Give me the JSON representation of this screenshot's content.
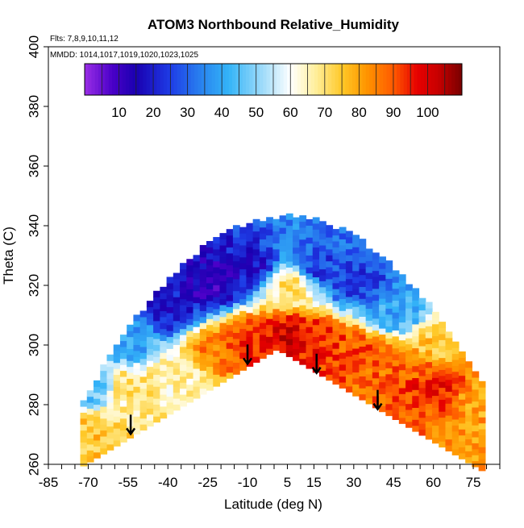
{
  "chart_data": {
    "type": "heatmap",
    "title": "ATOM3 Northbound Relative_Humidity",
    "subtitle_flights": "Flts: 7,8,9,10,11,12",
    "subtitle_dates": "MMDD: 1014,1017,1019,1020,1023,1025",
    "xlabel": "Latitude (deg N)",
    "ylabel": "Theta (C)",
    "xlim": [
      -85,
      85
    ],
    "ylim": [
      260,
      400
    ],
    "x_ticks": [
      -85,
      -70,
      -55,
      -40,
      -25,
      -10,
      5,
      15,
      30,
      45,
      60,
      75
    ],
    "y_ticks": [
      260,
      280,
      300,
      320,
      340,
      360,
      380,
      400
    ],
    "colorbar": {
      "range": [
        0,
        110
      ],
      "ticks": [
        10,
        20,
        30,
        40,
        50,
        60,
        70,
        80,
        90,
        100
      ],
      "stops": [
        {
          "v": 0,
          "c": "#9a2ee6"
        },
        {
          "v": 8,
          "c": "#4a00c8"
        },
        {
          "v": 15,
          "c": "#1a00b0"
        },
        {
          "v": 25,
          "c": "#1e3ce6"
        },
        {
          "v": 35,
          "c": "#2a8af0"
        },
        {
          "v": 42,
          "c": "#34b4f8"
        },
        {
          "v": 52,
          "c": "#a0dcfa"
        },
        {
          "v": 60,
          "c": "#ffffff"
        },
        {
          "v": 67,
          "c": "#fff0a0"
        },
        {
          "v": 75,
          "c": "#ffc828"
        },
        {
          "v": 82,
          "c": "#ff9600"
        },
        {
          "v": 90,
          "c": "#ff5a00"
        },
        {
          "v": 97,
          "c": "#e60000"
        },
        {
          "v": 103,
          "c": "#c80000"
        },
        {
          "v": 110,
          "c": "#780000"
        }
      ]
    },
    "arrows_latitude": [
      -54,
      -10,
      16,
      39
    ],
    "rh_field_anchor_points": [
      {
        "lat": -70,
        "theta": 285,
        "rh": 45
      },
      {
        "lat": -70,
        "theta": 270,
        "rh": 75
      },
      {
        "lat": -55,
        "theta": 300,
        "rh": 40
      },
      {
        "lat": -55,
        "theta": 285,
        "rh": 70
      },
      {
        "lat": -40,
        "theta": 310,
        "rh": 20
      },
      {
        "lat": -40,
        "theta": 290,
        "rh": 65
      },
      {
        "lat": -25,
        "theta": 320,
        "rh": 12
      },
      {
        "lat": -25,
        "theta": 298,
        "rh": 85
      },
      {
        "lat": -10,
        "theta": 325,
        "rh": 18
      },
      {
        "lat": -10,
        "theta": 300,
        "rh": 95
      },
      {
        "lat": 5,
        "theta": 320,
        "rh": 70
      },
      {
        "lat": 5,
        "theta": 302,
        "rh": 100
      },
      {
        "lat": 15,
        "theta": 325,
        "rh": 25
      },
      {
        "lat": 15,
        "theta": 300,
        "rh": 95
      },
      {
        "lat": 30,
        "theta": 320,
        "rh": 25
      },
      {
        "lat": 30,
        "theta": 296,
        "rh": 90
      },
      {
        "lat": 45,
        "theta": 310,
        "rh": 40
      },
      {
        "lat": 45,
        "theta": 293,
        "rh": 88
      },
      {
        "lat": 60,
        "theta": 300,
        "rh": 75
      },
      {
        "lat": 60,
        "theta": 285,
        "rh": 95
      },
      {
        "lat": 75,
        "theta": 280,
        "rh": 80
      }
    ]
  }
}
